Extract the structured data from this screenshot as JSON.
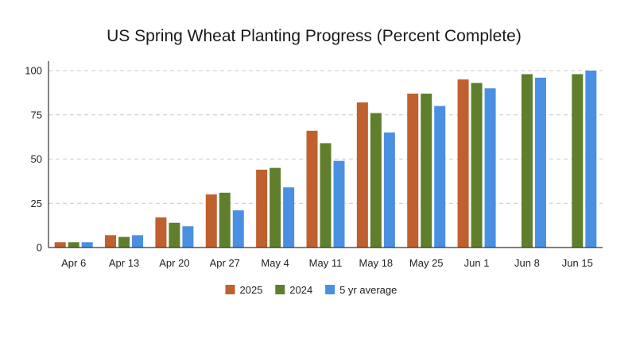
{
  "chart_data": {
    "type": "bar",
    "title": "US Spring Wheat Planting Progress (Percent Complete)",
    "xlabel": "",
    "ylabel": "",
    "categories": [
      "Apr 6",
      "Apr 13",
      "Apr 20",
      "Apr 27",
      "May 4",
      "May 11",
      "May 18",
      "May 25",
      "Jun 1",
      "Jun 8",
      "Jun 15"
    ],
    "ylim": [
      0,
      100
    ],
    "yticks": [
      0,
      25,
      50,
      75,
      100
    ],
    "grid": "horizontal dashed",
    "legend_position": "bottom-center",
    "series": [
      {
        "name": "2025",
        "color": "#c0602f",
        "values": [
          3,
          7,
          17,
          30,
          44,
          66,
          82,
          87,
          95,
          null,
          null
        ]
      },
      {
        "name": "2024",
        "color": "#5f7f2c",
        "values": [
          3,
          6,
          14,
          31,
          45,
          59,
          76,
          87,
          93,
          98,
          98
        ]
      },
      {
        "name": "5 yr average",
        "color": "#4a90e2",
        "values": [
          3,
          7,
          12,
          21,
          34,
          49,
          65,
          80,
          90,
          96,
          100
        ]
      }
    ]
  }
}
